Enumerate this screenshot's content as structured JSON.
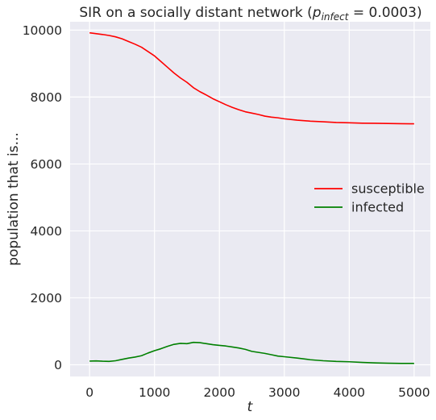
{
  "chart_data": {
    "type": "line",
    "title": {
      "prefix": "SIR on a socially distant network (",
      "var_main": "p",
      "var_sub": "infect",
      "equals": " = 0.0003",
      "suffix": ")"
    },
    "xlabel": "t",
    "ylabel": "population that is...",
    "xlim": [
      -300,
      5250
    ],
    "ylim": [
      -350,
      10250
    ],
    "xticks": [
      0,
      1000,
      2000,
      3000,
      4000,
      5000
    ],
    "yticks": [
      0,
      2000,
      4000,
      6000,
      8000,
      10000
    ],
    "grid": true,
    "legend_position": "center-right",
    "background_color": "#eaeaf2",
    "series": [
      {
        "name": "susceptible",
        "color": "#ff0000",
        "x": [
          0,
          200,
          300,
          400,
          500,
          600,
          700,
          800,
          900,
          1000,
          1100,
          1200,
          1300,
          1400,
          1500,
          1600,
          1700,
          1800,
          1900,
          2000,
          2100,
          2200,
          2300,
          2400,
          2500,
          2600,
          2700,
          2800,
          2900,
          3000,
          3200,
          3400,
          3600,
          3800,
          4000,
          4200,
          4400,
          4600,
          4800,
          5000
        ],
        "y": [
          9920,
          9870,
          9840,
          9800,
          9740,
          9660,
          9580,
          9490,
          9360,
          9230,
          9060,
          8890,
          8720,
          8570,
          8440,
          8280,
          8160,
          8060,
          7950,
          7860,
          7770,
          7690,
          7620,
          7560,
          7520,
          7480,
          7430,
          7400,
          7380,
          7350,
          7310,
          7280,
          7260,
          7240,
          7230,
          7220,
          7215,
          7210,
          7205,
          7200
        ]
      },
      {
        "name": "infected",
        "color": "#008000",
        "x": [
          0,
          100,
          200,
          300,
          400,
          500,
          600,
          700,
          800,
          900,
          1000,
          1100,
          1200,
          1300,
          1400,
          1500,
          1600,
          1700,
          1800,
          1900,
          2000,
          2100,
          2200,
          2300,
          2400,
          2500,
          2600,
          2700,
          2800,
          2900,
          3000,
          3200,
          3400,
          3600,
          3800,
          4000,
          4200,
          4400,
          4600,
          4800,
          5000
        ],
        "y": [
          110,
          115,
          105,
          100,
          120,
          160,
          200,
          230,
          270,
          350,
          420,
          480,
          550,
          610,
          640,
          630,
          670,
          660,
          630,
          600,
          580,
          560,
          530,
          500,
          460,
          400,
          370,
          340,
          300,
          260,
          240,
          200,
          150,
          120,
          100,
          90,
          70,
          55,
          45,
          40,
          40
        ]
      }
    ]
  }
}
